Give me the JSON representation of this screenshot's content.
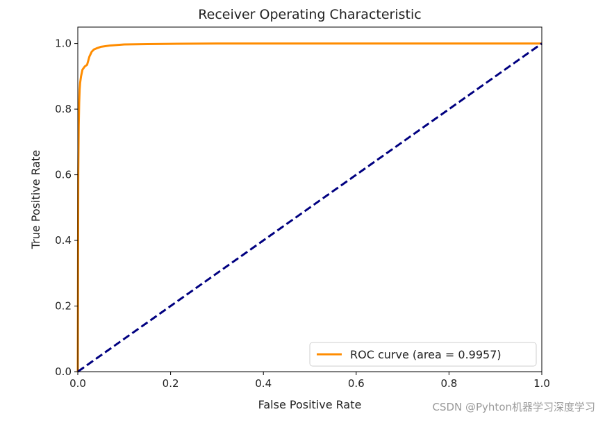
{
  "chart_data": {
    "type": "line",
    "title": "Receiver Operating Characteristic",
    "xlabel": "False Positive Rate",
    "ylabel": "True Positive Rate",
    "xlim": [
      0.0,
      1.0
    ],
    "ylim": [
      0.0,
      1.05
    ],
    "xticks": [
      "0.0",
      "0.2",
      "0.4",
      "0.6",
      "0.8",
      "1.0"
    ],
    "yticks": [
      "0.0",
      "0.2",
      "0.4",
      "0.6",
      "0.8",
      "1.0"
    ],
    "grid": false,
    "legend_position": "bottom-right",
    "series": [
      {
        "name": "ROC curve (area = 0.9957)",
        "color": "#ff8c00",
        "style": "solid",
        "x": [
          0,
          0.001,
          0.002,
          0.003,
          0.004,
          0.005,
          0.007,
          0.01,
          0.015,
          0.02,
          0.025,
          0.03,
          0.035,
          0.04,
          0.05,
          0.07,
          0.1,
          0.15,
          0.2,
          0.3,
          0.5,
          0.7,
          1.0
        ],
        "y": [
          0,
          0.6,
          0.75,
          0.82,
          0.86,
          0.88,
          0.9,
          0.92,
          0.93,
          0.935,
          0.96,
          0.975,
          0.982,
          0.985,
          0.99,
          0.994,
          0.997,
          0.998,
          0.999,
          1.0,
          1.0,
          1.0,
          1.0
        ]
      },
      {
        "name": "",
        "color": "#000080",
        "style": "dashed",
        "x": [
          0,
          1
        ],
        "y": [
          0,
          1
        ]
      }
    ]
  },
  "watermark": "CSDN @Pyhton机器学习深度学习"
}
